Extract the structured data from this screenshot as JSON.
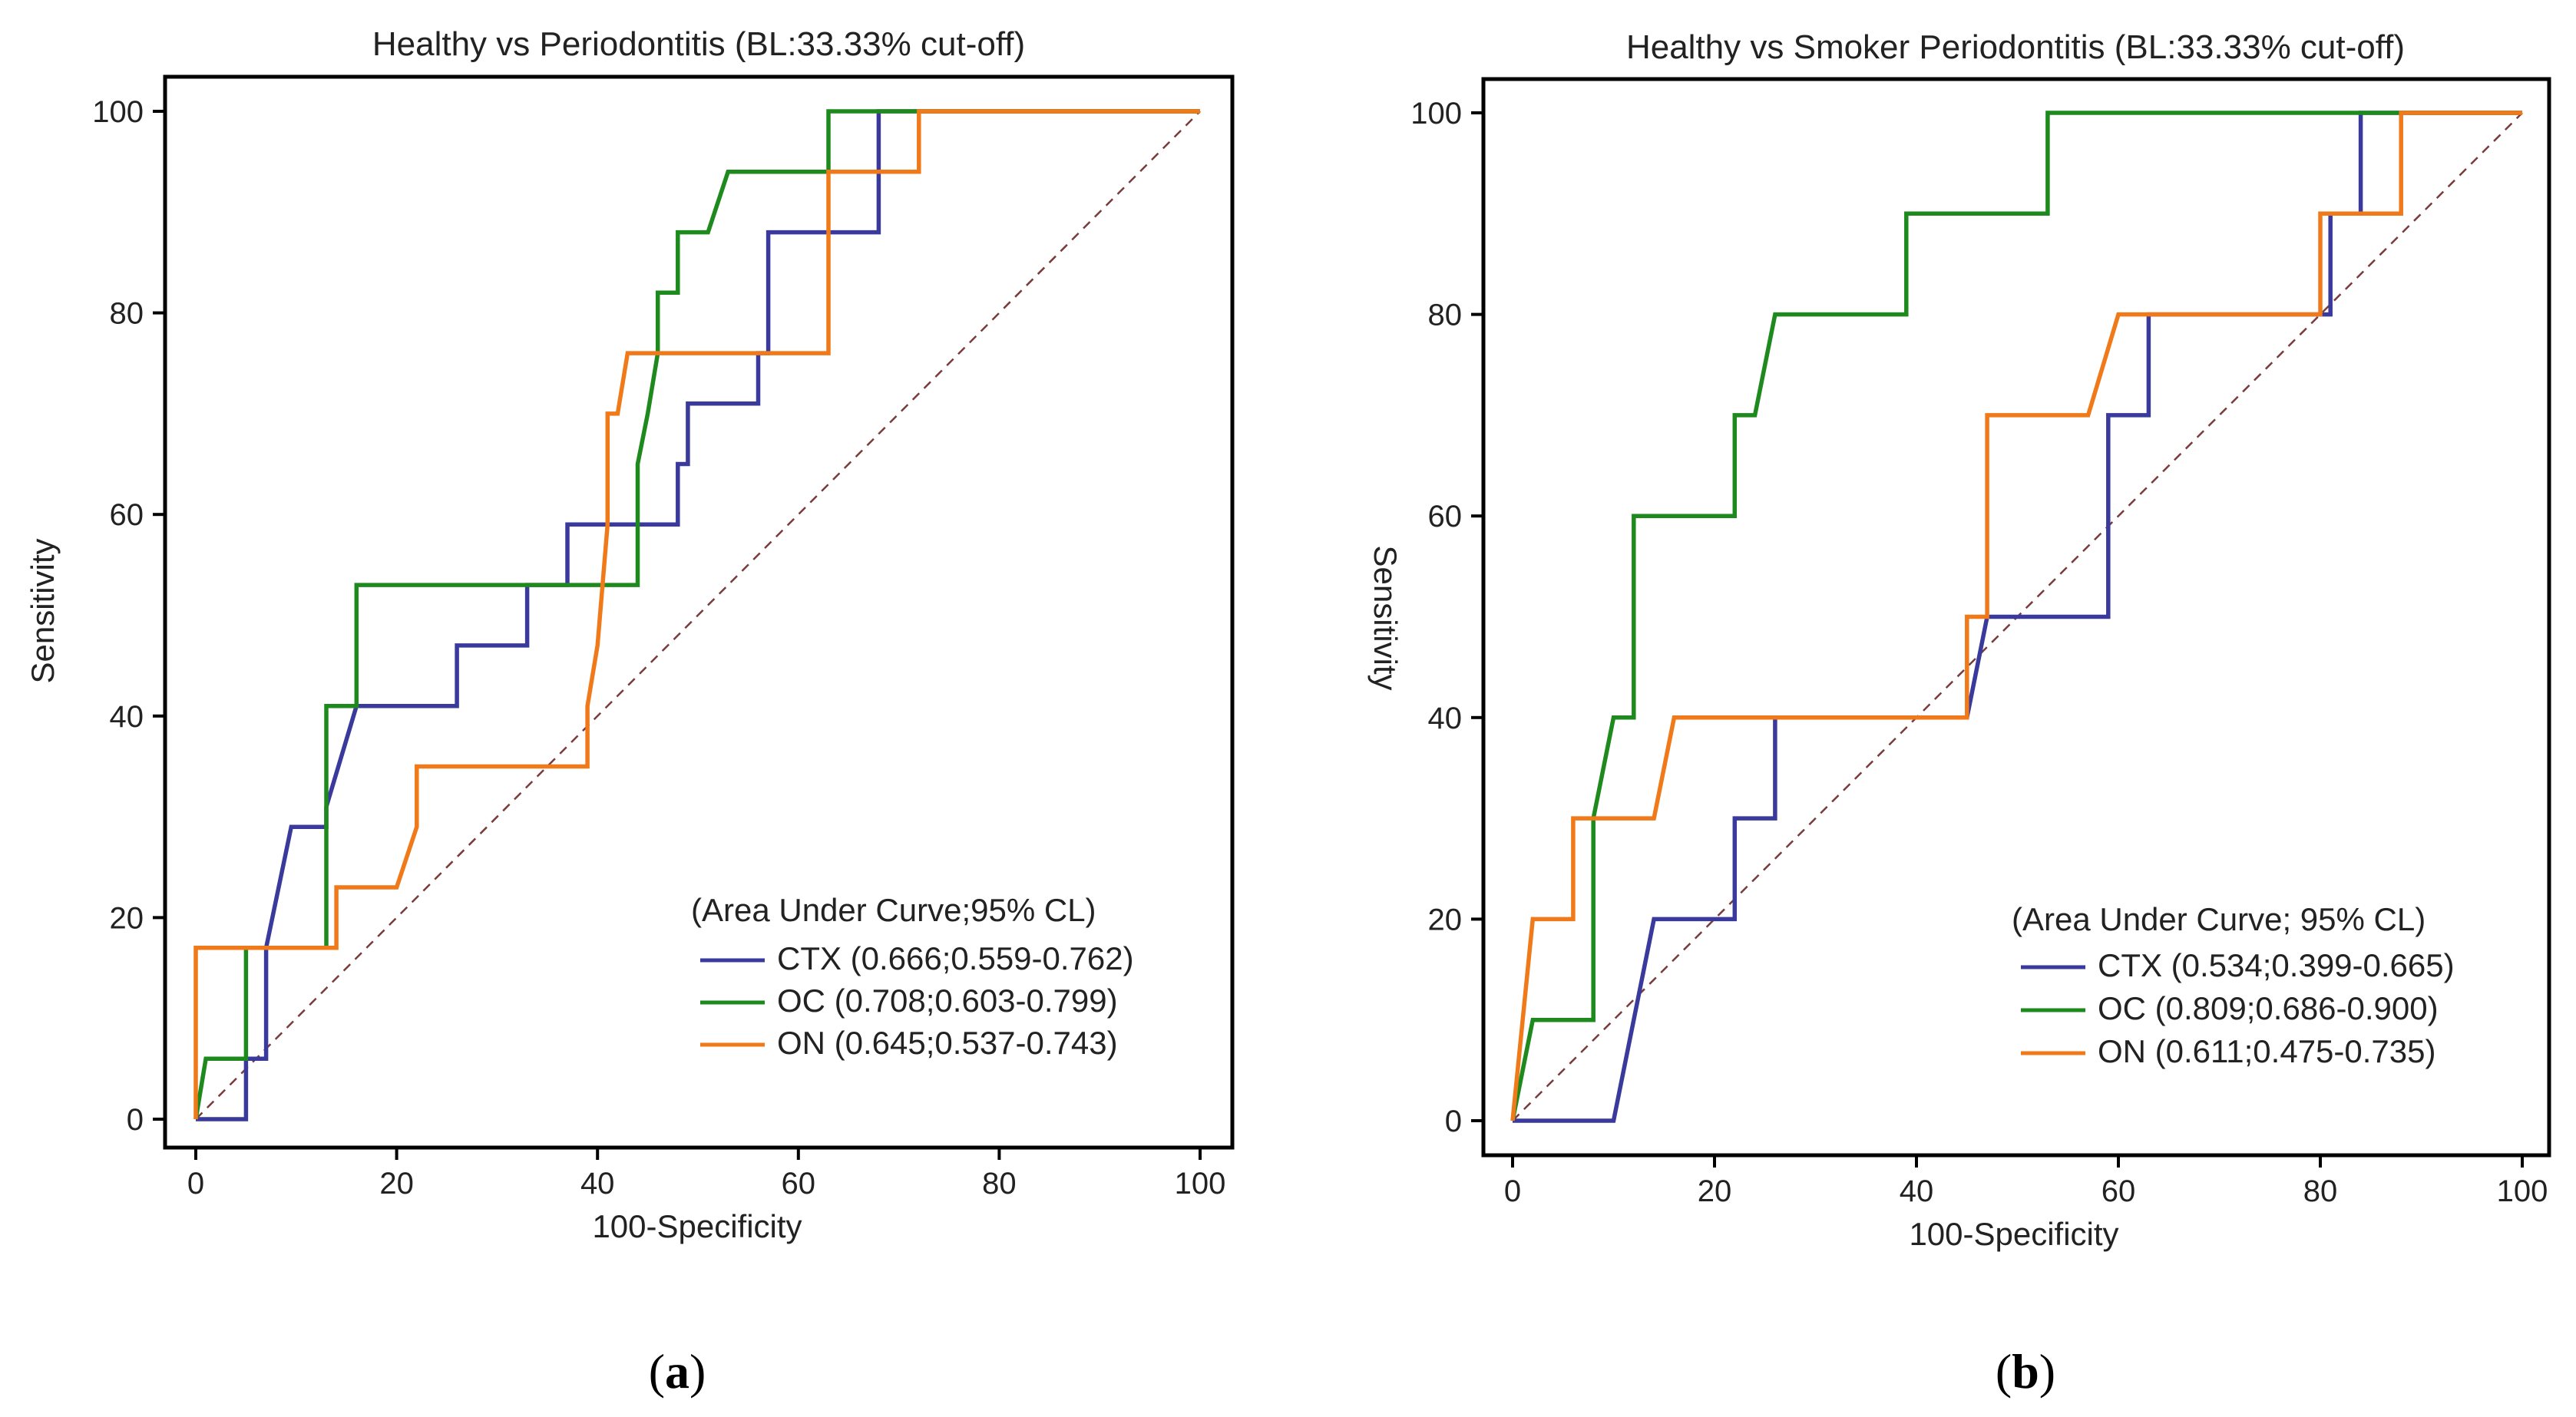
{
  "chart_data": [
    {
      "type": "line",
      "panel": "a",
      "title": "Healthy vs Periodontitis (BL:33.33% cut-off)",
      "xlabel": "100-Specificity",
      "ylabel": "Sensitivity",
      "xlim": [
        0,
        100
      ],
      "ylim": [
        0,
        100
      ],
      "xticks": [
        "0",
        "20",
        "40",
        "60",
        "80",
        "100"
      ],
      "yticks": [
        "0",
        "20",
        "40",
        "60",
        "80",
        "100"
      ],
      "legend_title": "(Area Under Curve;95% CL)",
      "reference_line": {
        "from": [
          0,
          0
        ],
        "to": [
          100,
          100
        ],
        "style": "dashed",
        "color": "#7a3b3b"
      },
      "series": [
        {
          "name": "CTX",
          "legend_label": "CTX (0.666;0.559-0.762)",
          "color": "#3a3a9c",
          "points": [
            [
              0,
              0
            ],
            [
              5,
              0
            ],
            [
              5,
              6
            ],
            [
              7,
              6
            ],
            [
              7,
              17
            ],
            [
              9.5,
              29
            ],
            [
              13,
              29
            ],
            [
              13,
              31
            ],
            [
              16,
              41
            ],
            [
              26,
              41
            ],
            [
              26,
              47
            ],
            [
              33,
              47
            ],
            [
              33,
              53
            ],
            [
              37,
              53
            ],
            [
              37,
              59
            ],
            [
              48,
              59
            ],
            [
              48,
              65
            ],
            [
              49,
              65
            ],
            [
              49,
              71
            ],
            [
              56,
              71
            ],
            [
              56,
              76
            ],
            [
              57,
              76
            ],
            [
              57,
              88
            ],
            [
              68,
              88
            ],
            [
              68,
              100
            ],
            [
              72,
              100
            ],
            [
              100,
              100
            ]
          ]
        },
        {
          "name": "OC",
          "legend_label": "OC (0.708;0.603-0.799)",
          "color": "#1e8a1e",
          "points": [
            [
              0,
              0
            ],
            [
              1,
              6
            ],
            [
              5,
              6
            ],
            [
              5,
              17
            ],
            [
              13,
              17
            ],
            [
              13,
              41
            ],
            [
              16,
              41
            ],
            [
              16,
              53
            ],
            [
              44,
              53
            ],
            [
              44,
              65
            ],
            [
              45,
              70
            ],
            [
              46,
              76
            ],
            [
              46,
              82
            ],
            [
              48,
              82
            ],
            [
              48,
              88
            ],
            [
              51,
              88
            ],
            [
              53,
              94
            ],
            [
              63,
              94
            ],
            [
              63,
              100
            ],
            [
              100,
              100
            ]
          ]
        },
        {
          "name": "ON",
          "legend_label": "ON (0.645;0.537-0.743)",
          "color": "#f07a1a",
          "points": [
            [
              0,
              0
            ],
            [
              0,
              17
            ],
            [
              14,
              17
            ],
            [
              14,
              23
            ],
            [
              20,
              23
            ],
            [
              22,
              29
            ],
            [
              22,
              35
            ],
            [
              39,
              35
            ],
            [
              39,
              41
            ],
            [
              40,
              47
            ],
            [
              41,
              59
            ],
            [
              41,
              70
            ],
            [
              42,
              70
            ],
            [
              43,
              76
            ],
            [
              63,
              76
            ],
            [
              63,
              94
            ],
            [
              72,
              94
            ],
            [
              72,
              100
            ],
            [
              100,
              100
            ]
          ]
        }
      ]
    },
    {
      "type": "line",
      "panel": "b",
      "title": "Healthy vs Smoker Periodontitis (BL:33.33% cut-off)",
      "xlabel": "100-Specificity",
      "ylabel": "Sensitivity",
      "xlim": [
        0,
        100
      ],
      "ylim": [
        0,
        100
      ],
      "xticks": [
        "0",
        "20",
        "40",
        "60",
        "80",
        "100"
      ],
      "yticks": [
        "0",
        "20",
        "40",
        "60",
        "80",
        "100"
      ],
      "legend_title": "(Area Under Curve; 95% CL)",
      "reference_line": {
        "from": [
          0,
          0
        ],
        "to": [
          100,
          100
        ],
        "style": "dashed",
        "color": "#7a3b3b"
      },
      "series": [
        {
          "name": "CTX",
          "legend_label": "CTX (0.534;0.399-0.665)",
          "color": "#3a3a9c",
          "points": [
            [
              0,
              0
            ],
            [
              10,
              0
            ],
            [
              14,
              20
            ],
            [
              22,
              20
            ],
            [
              22,
              30
            ],
            [
              26,
              30
            ],
            [
              26,
              40
            ],
            [
              45,
              40
            ],
            [
              47,
              50
            ],
            [
              59,
              50
            ],
            [
              59,
              70
            ],
            [
              63,
              70
            ],
            [
              63,
              80
            ],
            [
              81,
              80
            ],
            [
              81,
              90
            ],
            [
              84,
              90
            ],
            [
              84,
              100
            ],
            [
              100,
              100
            ]
          ]
        },
        {
          "name": "OC",
          "legend_label": "OC (0.809;0.686-0.900)",
          "color": "#1e8a1e",
          "points": [
            [
              0,
              0
            ],
            [
              2,
              10
            ],
            [
              8,
              10
            ],
            [
              8,
              30
            ],
            [
              10,
              40
            ],
            [
              12,
              40
            ],
            [
              12,
              60
            ],
            [
              22,
              60
            ],
            [
              22,
              70
            ],
            [
              24,
              70
            ],
            [
              26,
              80
            ],
            [
              39,
              80
            ],
            [
              39,
              90
            ],
            [
              53,
              90
            ],
            [
              53,
              100
            ],
            [
              100,
              100
            ]
          ]
        },
        {
          "name": "ON",
          "legend_label": "ON (0.611;0.475-0.735)",
          "color": "#f07a1a",
          "points": [
            [
              0,
              0
            ],
            [
              2,
              20
            ],
            [
              6,
              20
            ],
            [
              6,
              30
            ],
            [
              14,
              30
            ],
            [
              16,
              40
            ],
            [
              45,
              40
            ],
            [
              45,
              50
            ],
            [
              47,
              50
            ],
            [
              47,
              70
            ],
            [
              57,
              70
            ],
            [
              60,
              80
            ],
            [
              80,
              80
            ],
            [
              80,
              90
            ],
            [
              88,
              90
            ],
            [
              88,
              100
            ],
            [
              100,
              100
            ]
          ]
        }
      ]
    }
  ],
  "panel_labels": {
    "a": {
      "open": "(",
      "letter": "a",
      "close": ")"
    },
    "b": {
      "open": "(",
      "letter": "b",
      "close": ")"
    }
  }
}
